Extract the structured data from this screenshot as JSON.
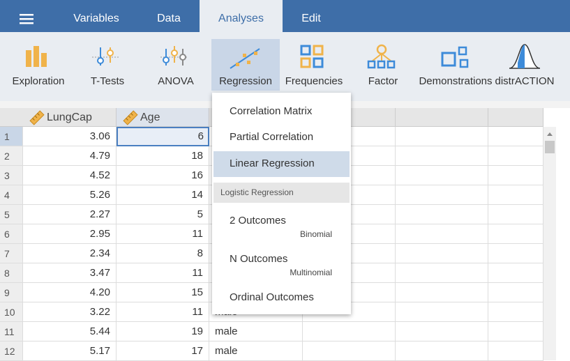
{
  "menu_bar": {
    "tabs": [
      "Variables",
      "Data",
      "Analyses",
      "Edit"
    ],
    "active_tab": 2
  },
  "ribbon": {
    "buttons": [
      "Exploration",
      "T-Tests",
      "ANOVA",
      "Regression",
      "Frequencies",
      "Factor",
      "Demonstrations",
      "distrACTION"
    ],
    "active_button": 3
  },
  "spreadsheet": {
    "columns": [
      "LungCap",
      "Age"
    ],
    "rows": [
      [
        "1",
        "3.06",
        "6",
        null
      ],
      [
        "2",
        "4.79",
        "18",
        null
      ],
      [
        "3",
        "4.52",
        "16",
        null
      ],
      [
        "4",
        "5.26",
        "14",
        null
      ],
      [
        "5",
        "2.27",
        "5",
        null
      ],
      [
        "6",
        "2.95",
        "11",
        null
      ],
      [
        "7",
        "2.34",
        "8",
        null
      ],
      [
        "8",
        "3.47",
        "11",
        null
      ],
      [
        "9",
        "4.20",
        "15",
        null
      ],
      [
        "10",
        "3.22",
        "11",
        "male"
      ],
      [
        "11",
        "5.44",
        "19",
        "male"
      ],
      [
        "12",
        "5.17",
        "17",
        "male"
      ]
    ]
  },
  "menu": {
    "items": [
      {
        "label": "Correlation Matrix"
      },
      {
        "label": "Partial Correlation"
      },
      {
        "label": "Linear Regression"
      },
      {
        "section": "Logistic Regression"
      },
      {
        "label": "2 Outcomes",
        "sublabel": "Binomial"
      },
      {
        "label": "N Outcomes",
        "sublabel": "Multinomial"
      },
      {
        "label": "Ordinal Outcomes"
      }
    ]
  }
}
